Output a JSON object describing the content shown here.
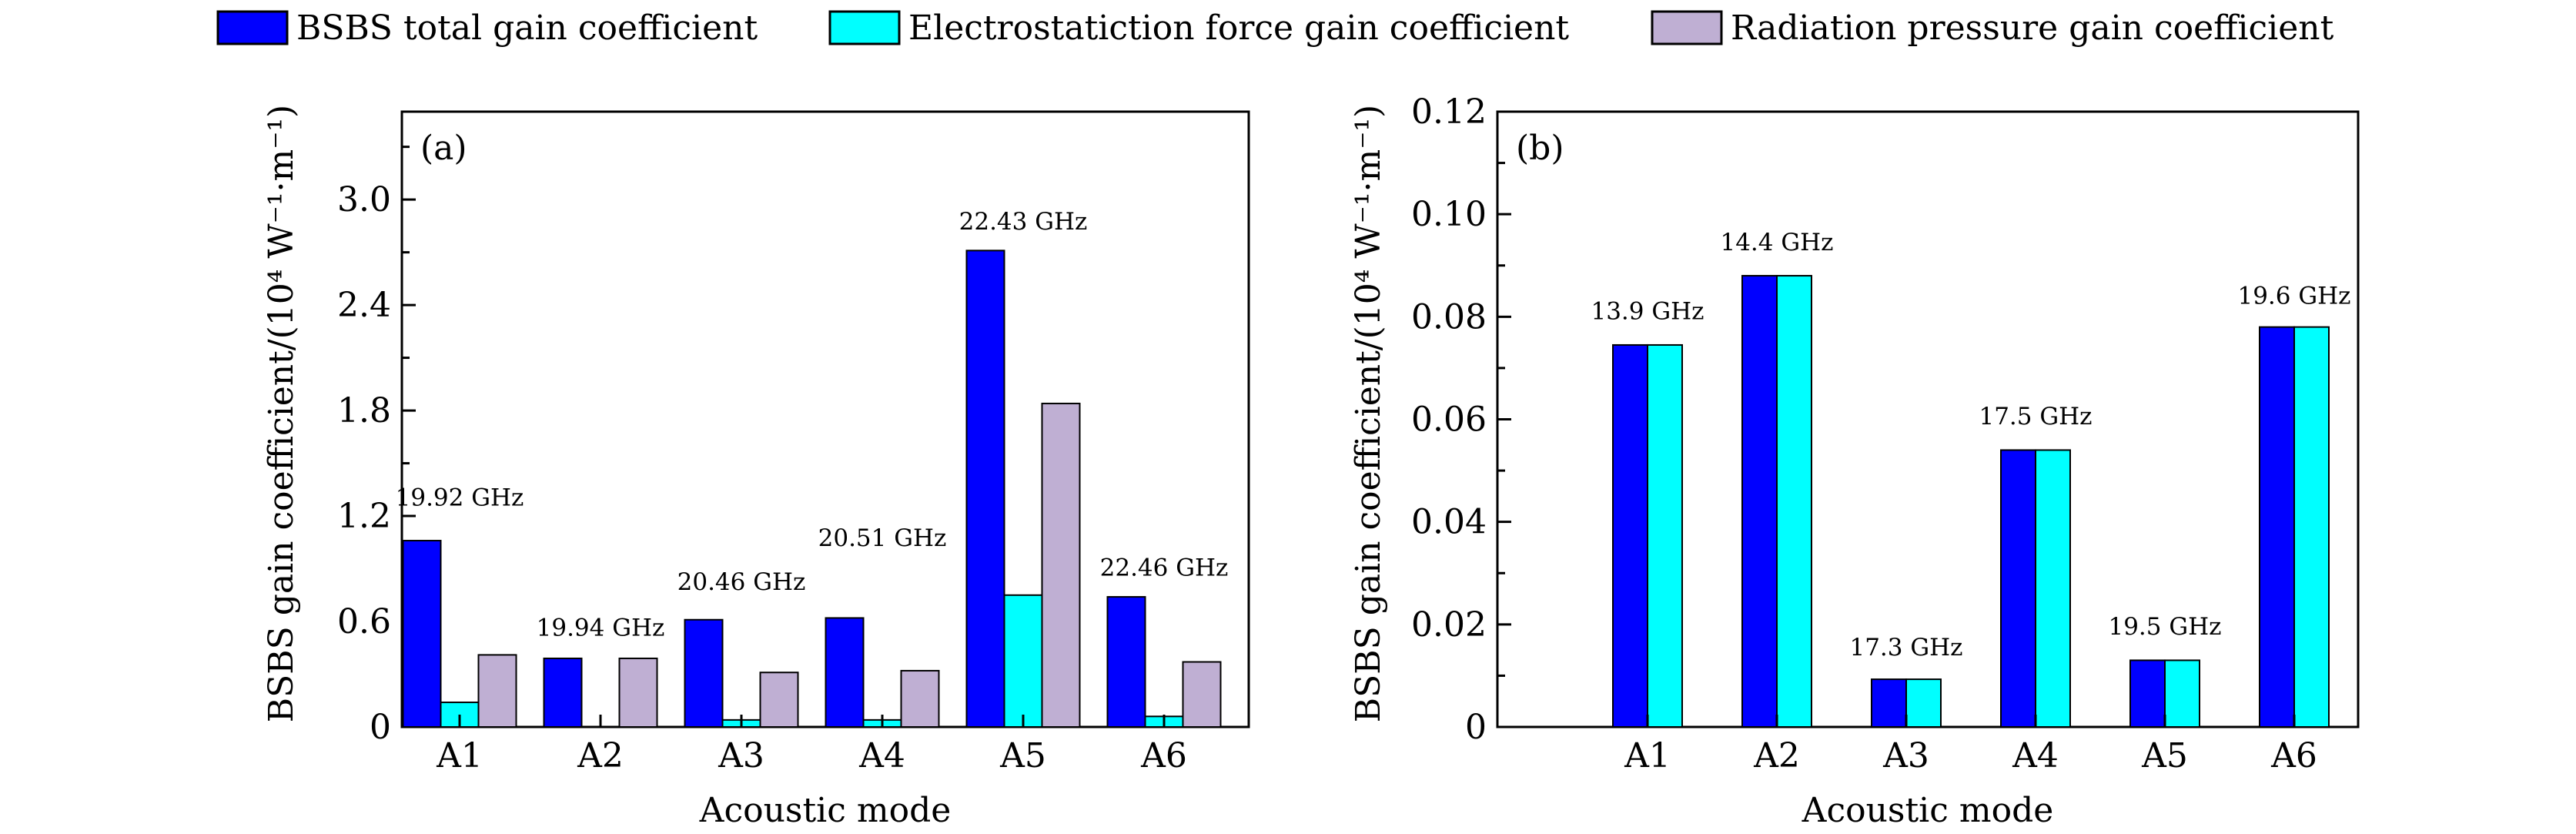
{
  "legend": [
    {
      "label": "BSBS total gain coefficient",
      "color": "#0000ff"
    },
    {
      "label": "Electrostatiction force gain coefficient",
      "color": "#00ffff"
    },
    {
      "label": "Radiation pressure gain coefficient",
      "color": "#bfafd3"
    }
  ],
  "chart_data": [
    {
      "type": "bar",
      "panel_label": "(a)",
      "categories": [
        "A1",
        "A2",
        "A3",
        "A4",
        "A5",
        "A6"
      ],
      "series": [
        {
          "name": "BSBS total gain coefficient",
          "values": [
            1.06,
            0.39,
            0.61,
            0.62,
            2.71,
            0.74
          ]
        },
        {
          "name": "Electrostatiction force gain coefficient",
          "values": [
            0.14,
            0.0,
            0.04,
            0.04,
            0.75,
            0.06
          ]
        },
        {
          "name": "Radiation pressure gain coefficient",
          "values": [
            0.41,
            0.39,
            0.31,
            0.32,
            1.84,
            0.37
          ]
        }
      ],
      "bar_labels": [
        "19.92 GHz",
        "19.94 GHz",
        "20.46 GHz",
        "20.51 GHz",
        "22.43 GHz",
        "22.46 GHz"
      ],
      "label_heights": [
        1.26,
        0.52,
        0.78,
        1.03,
        2.83,
        0.86
      ],
      "ylim": [
        0,
        3.5
      ],
      "yticks": [
        0,
        0.6,
        1.2,
        1.8,
        2.4,
        3.0
      ],
      "ytick_labels": [
        "0",
        "0.6",
        "1.2",
        "1.8",
        "2.4",
        "3.0"
      ],
      "xlabel": "Acoustic mode",
      "ylabel": "BSBS gain coefficient/(10⁴ W⁻¹·m⁻¹)"
    },
    {
      "type": "bar",
      "panel_label": "(b)",
      "categories": [
        "A1",
        "A2",
        "A3",
        "A4",
        "A5",
        "A6"
      ],
      "series": [
        {
          "name": "BSBS total gain coefficient",
          "values": [
            0.0745,
            0.088,
            0.0093,
            0.054,
            0.013,
            0.078
          ]
        },
        {
          "name": "Electrostatiction force gain coefficient",
          "values": [
            0.0745,
            0.088,
            0.0093,
            0.054,
            0.013,
            0.078
          ]
        }
      ],
      "bar_labels": [
        "13.9 GHz",
        "14.4 GHz",
        "17.3 GHz",
        "17.5 GHz",
        "19.5 GHz",
        "19.6 GHz"
      ],
      "label_heights": [
        0.0795,
        0.093,
        0.014,
        0.059,
        0.018,
        0.0825
      ],
      "ylim": [
        0,
        0.12
      ],
      "yticks": [
        0,
        0.02,
        0.04,
        0.06,
        0.08,
        0.1,
        0.12
      ],
      "ytick_labels": [
        "0",
        "0.02",
        "0.04",
        "0.06",
        "0.08",
        "0.10",
        "0.12"
      ],
      "xlabel": "Acoustic mode",
      "ylabel": "BSBS gain coefficient/(10⁴ W⁻¹·m⁻¹)"
    }
  ]
}
